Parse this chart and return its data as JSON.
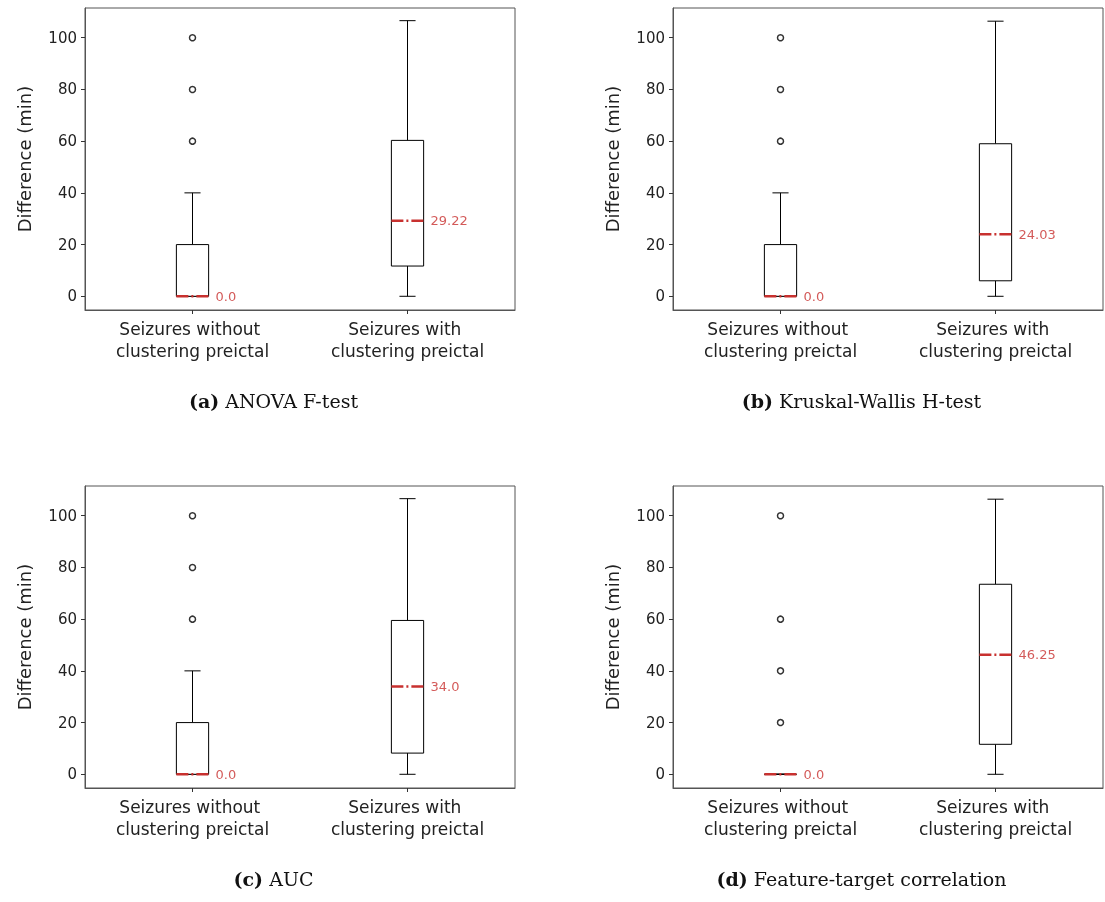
{
  "chart_data": [
    {
      "type": "box",
      "title": "(a) ANOVA F-test",
      "ylabel": "Difference (min)",
      "categories": [
        "Seizures without clustering preictal",
        "Seizures with clustering preictal"
      ],
      "ylim": [
        -5.3,
        111.5
      ],
      "yticks": [
        0,
        20,
        40,
        60,
        80,
        100
      ],
      "color": "#000000",
      "boxes": [
        {
          "low": 0,
          "q1": 0,
          "median": 0,
          "q3": 20,
          "high": 40,
          "outliers": [
            60,
            80,
            100
          ]
        },
        {
          "low": 0,
          "q1": 11.7,
          "median": 29.22,
          "q3": 60.3,
          "high": 106.6
        }
      ],
      "annotations": [
        {
          "text": "0.0",
          "x": "Seizures without clustering preictal",
          "y": 0
        },
        {
          "text": "29.22",
          "x": "Seizures with clustering preictal",
          "y": 29.22
        }
      ]
    },
    {
      "type": "box",
      "title": "(b) Kruskal-Wallis H-test",
      "ylabel": "Difference (min)",
      "categories": [
        "Seizures without clustering preictal",
        "Seizures with clustering preictal"
      ],
      "ylim": [
        -5.3,
        111.5
      ],
      "yticks": [
        0,
        20,
        40,
        60,
        80,
        100
      ],
      "color": "#000000",
      "boxes": [
        {
          "low": 0,
          "q1": 0,
          "median": 0,
          "q3": 20,
          "high": 40,
          "outliers": [
            60,
            80,
            100
          ]
        },
        {
          "low": 0,
          "q1": 6,
          "median": 24.03,
          "q3": 59,
          "high": 106.4
        }
      ],
      "annotations": [
        {
          "text": "0.0",
          "x": "Seizures without clustering preictal",
          "y": 0
        },
        {
          "text": "24.03",
          "x": "Seizures with clustering preictal",
          "y": 24.03
        }
      ]
    },
    {
      "type": "box",
      "title": "(c) AUC",
      "ylabel": "Difference (min)",
      "categories": [
        "Seizures without clustering preictal",
        "Seizures with clustering preictal"
      ],
      "ylim": [
        -5.3,
        111.5
      ],
      "yticks": [
        0,
        20,
        40,
        60,
        80,
        100
      ],
      "color": "#000000",
      "boxes": [
        {
          "low": 0,
          "q1": 0,
          "median": 0,
          "q3": 20,
          "high": 40,
          "outliers": [
            60,
            80,
            100
          ]
        },
        {
          "low": 0,
          "q1": 8.2,
          "median": 34.0,
          "q3": 59.5,
          "high": 106.6
        }
      ],
      "annotations": [
        {
          "text": "0.0",
          "x": "Seizures without clustering preictal",
          "y": 0
        },
        {
          "text": "34.0",
          "x": "Seizures with clustering preictal",
          "y": 34.0
        }
      ]
    },
    {
      "type": "box",
      "title": "(d) Feature-target correlation",
      "ylabel": "Difference (min)",
      "categories": [
        "Seizures without clustering preictal",
        "Seizures with clustering preictal"
      ],
      "ylim": [
        -5.3,
        111.5
      ],
      "yticks": [
        0,
        20,
        40,
        60,
        80,
        100
      ],
      "color": "#000000",
      "boxes": [
        {
          "low": 0,
          "q1": 0,
          "median": 0,
          "q3": 0,
          "high": 0,
          "outliers": [
            20,
            40,
            60,
            100
          ]
        },
        {
          "low": 0,
          "q1": 11.6,
          "median": 46.25,
          "q3": 73.5,
          "high": 106.4
        }
      ],
      "annotations": [
        {
          "text": "0.0",
          "x": "Seizures without clustering preictal",
          "y": 0
        },
        {
          "text": "46.25",
          "x": "Seizures with clustering preictal",
          "y": 46.25
        }
      ]
    }
  ]
}
